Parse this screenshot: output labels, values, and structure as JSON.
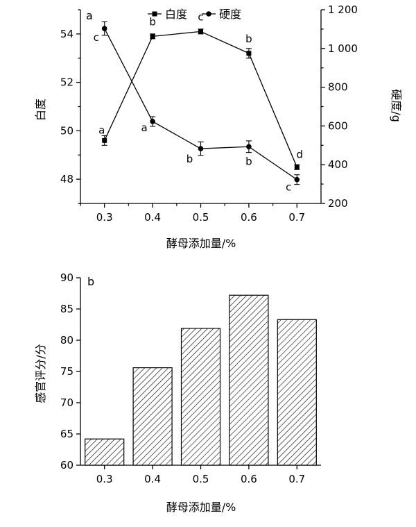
{
  "chart_data": [
    {
      "type": "line",
      "panel_label": "a",
      "xlabel": "酵母添加量/%",
      "x": [
        0.3,
        0.4,
        0.5,
        0.6,
        0.7
      ],
      "x_ticks": [
        "0.3",
        "0.4",
        "0.5",
        "0.6",
        "0.7"
      ],
      "xlim": [
        0.25,
        0.75
      ],
      "ylabel_left": "白度",
      "ylim_left": [
        47,
        55
      ],
      "y_ticks_left": [
        "48",
        "50",
        "52",
        "54"
      ],
      "ylabel_right": "硬度/g",
      "ylim_right": [
        200,
        1200
      ],
      "y_ticks_right": [
        "200",
        "400",
        "600",
        "800",
        "1 000",
        "1 200"
      ],
      "legend_position": "top-center",
      "series": [
        {
          "name": "白度",
          "axis": "left",
          "marker": "square",
          "values": [
            49.6,
            53.9,
            54.1,
            53.2,
            48.5
          ],
          "errors": [
            0.2,
            0.1,
            0.1,
            0.2,
            0.1
          ],
          "significance": [
            "a",
            "b",
            "c",
            "b",
            "d"
          ]
        },
        {
          "name": "硬度",
          "axis": "right",
          "marker": "circle",
          "values": [
            1103,
            623,
            483,
            493,
            323
          ],
          "errors": [
            35,
            25,
            35,
            30,
            25
          ],
          "significance": [
            "c",
            "a",
            "b",
            "b",
            "c"
          ]
        }
      ]
    },
    {
      "type": "bar",
      "panel_label": "b",
      "xlabel": "酵母添加量/%",
      "ylabel": "感官评分/分",
      "categories": [
        "0.3",
        "0.4",
        "0.5",
        "0.6",
        "0.7"
      ],
      "values": [
        64.2,
        75.6,
        81.9,
        87.2,
        83.3
      ],
      "ylim": [
        60,
        90
      ],
      "y_ticks": [
        "60",
        "65",
        "70",
        "75",
        "80",
        "85",
        "90"
      ],
      "fill_pattern": "diagonal-hatch"
    }
  ]
}
